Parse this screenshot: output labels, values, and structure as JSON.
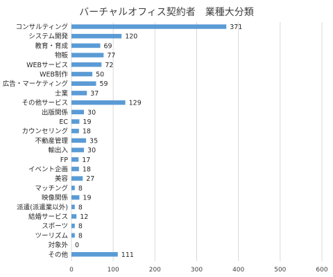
{
  "chart_data": {
    "type": "bar",
    "orientation": "horizontal",
    "title": "バーチャルオフィス契約者　業種大分類",
    "xlabel": "",
    "ylabel": "",
    "xlim": [
      0,
      600
    ],
    "x_ticks": [
      0,
      100,
      200,
      300,
      400,
      500,
      600
    ],
    "grid": true,
    "legend": "none",
    "bar_color": "#5b9bd5",
    "categories": [
      "コンサルティング",
      "システム開発",
      "教育・育成",
      "物販",
      "WEBサービス",
      "WEB制作",
      "広告・マーケティング",
      "士業",
      "その他サービス",
      "出版関係",
      "EC",
      "カウンセリング",
      "不動産管理",
      "輸出入",
      "FP",
      "イベント企画",
      "美容",
      "マッチング",
      "映像関係",
      "派遣(派遣業以外)",
      "結婚サービス",
      "スポーツ",
      "ツーリズム",
      "対象外",
      "その他"
    ],
    "values": [
      371,
      120,
      69,
      77,
      72,
      50,
      59,
      37,
      129,
      30,
      19,
      18,
      35,
      30,
      17,
      18,
      27,
      8,
      19,
      8,
      12,
      8,
      8,
      0,
      111
    ]
  }
}
